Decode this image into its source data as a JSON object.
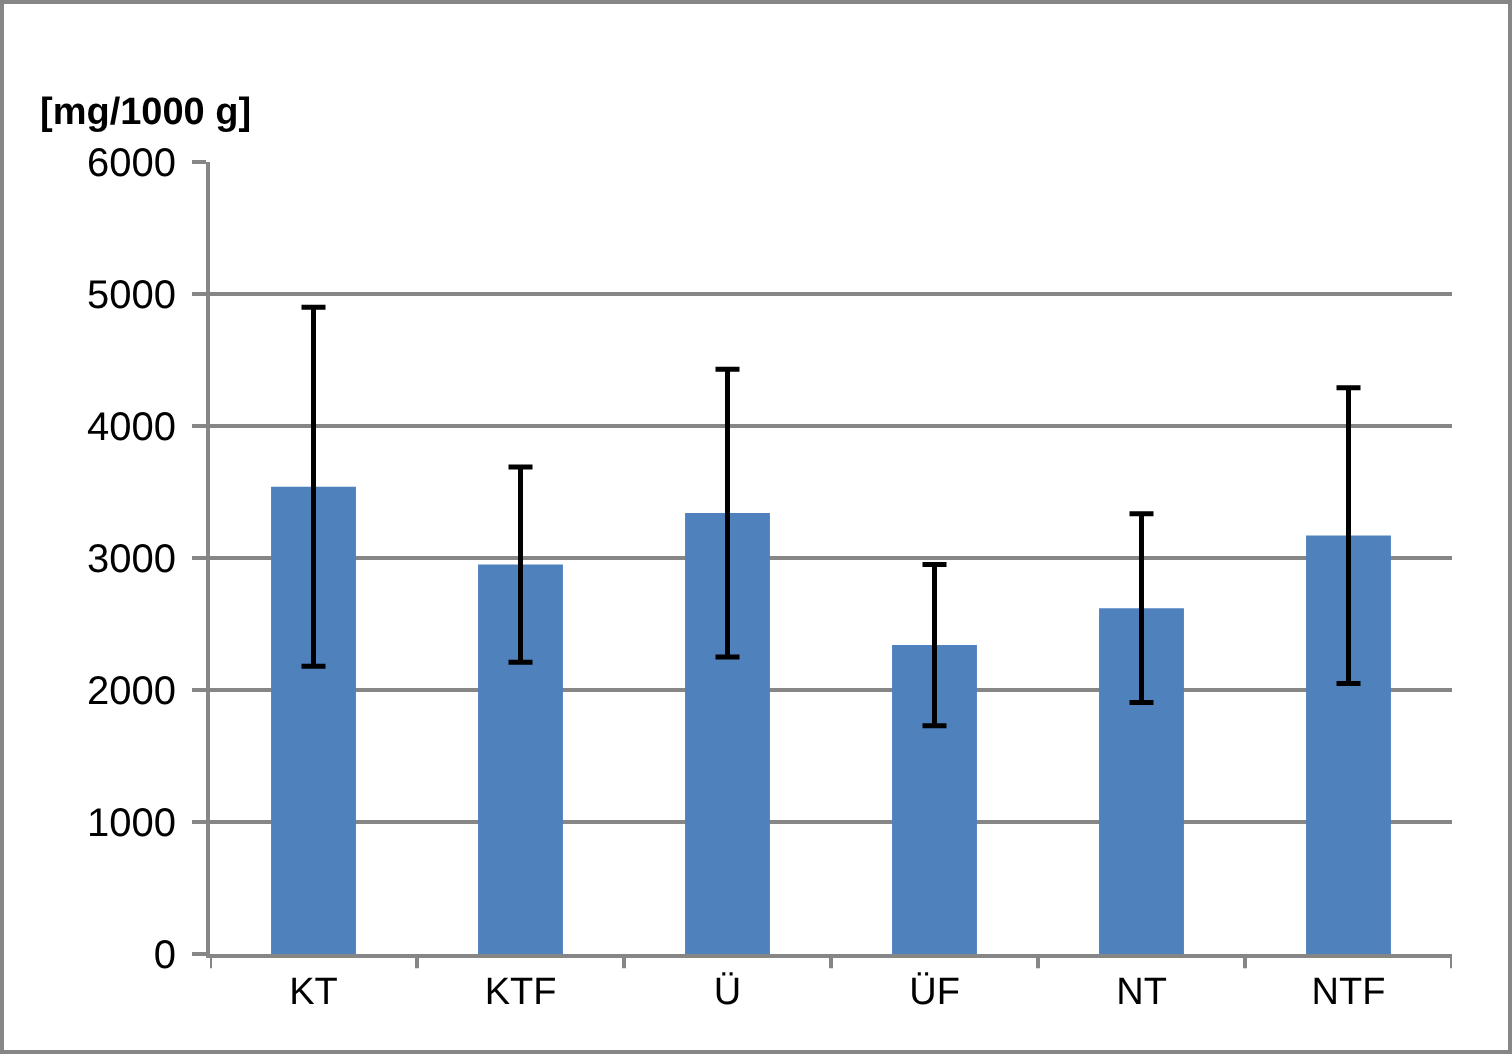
{
  "chart_data": {
    "type": "bar",
    "ylabel": "[mg/1000 g]",
    "categories": [
      "KT",
      "KTF",
      "Ü",
      "ÜF",
      "NT",
      "NTF"
    ],
    "values": [
      3540,
      2950,
      3340,
      2340,
      2620,
      3170
    ],
    "errors": [
      1360,
      740,
      1090,
      610,
      715,
      1120
    ],
    "color": "#4f81bd",
    "ylim": [
      0,
      6000
    ],
    "yticks": [
      0,
      1000,
      2000,
      3000,
      4000,
      5000,
      6000
    ],
    "grid": "y",
    "legend": false
  }
}
